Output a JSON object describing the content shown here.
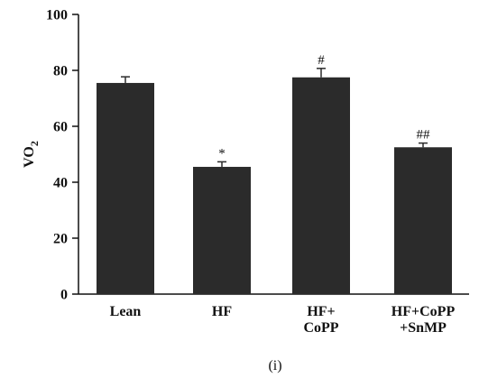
{
  "chart_data": {
    "type": "bar",
    "categories": [
      [
        "Lean"
      ],
      [
        "HF"
      ],
      [
        "HF+",
        "CoPP"
      ],
      [
        "HF+CoPP",
        "+SnMP"
      ]
    ],
    "values": [
      75.5,
      45.5,
      77.5,
      52.5
    ],
    "error": [
      2.2,
      1.8,
      3.2,
      1.5
    ],
    "annotations": [
      "",
      "*",
      "#",
      "##"
    ],
    "ylabel_main": "VO",
    "ylabel_sub": "2",
    "ylim": [
      0,
      100
    ],
    "yticks": [
      0,
      20,
      40,
      60,
      80,
      100
    ],
    "grid": false,
    "colors": {
      "bar": "#2b2b2b",
      "axis": "#111111"
    }
  },
  "caption": "(i)"
}
